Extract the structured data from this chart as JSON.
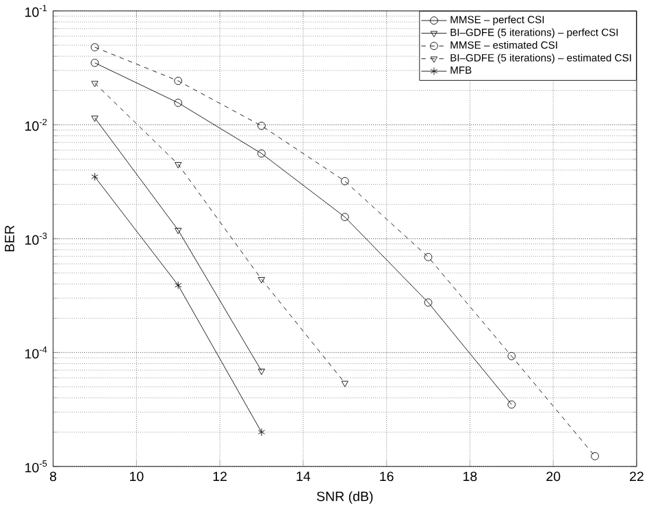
{
  "chart_data": {
    "type": "line",
    "xlabel": "SNR (dB)",
    "ylabel": "BER",
    "log": "y",
    "grid": true,
    "legend": "top right",
    "xlim": [
      8,
      22
    ],
    "xticks": [
      8,
      10,
      12,
      14,
      16,
      18,
      20,
      22
    ],
    "ylim": [
      1e-05,
      0.1
    ],
    "yticks": [
      {
        "value": 1e-05,
        "label": "10$^{-5}$"
      },
      {
        "value": 0.0001,
        "label": "10$^{-4}$"
      },
      {
        "value": 0.001,
        "label": "10$^{-3}$"
      },
      {
        "value": 0.01,
        "label": "10$^{-2}$"
      },
      {
        "value": 0.1,
        "label": "10$^{-1}$"
      }
    ],
    "series": [
      {
        "name": "MMSE – perfect CSI",
        "color": "#000000",
        "marker": "circle",
        "line_style": "solid",
        "x": [
          9,
          11,
          13,
          15,
          17,
          19
        ],
        "values": [
          0.035,
          0.0156,
          0.0056,
          0.00155,
          0.000275,
          3.5e-05
        ]
      },
      {
        "name": "BI–GDFE (5 iterations) – perfect CSI",
        "color": "#000000",
        "marker": "triangle",
        "line_style": "solid",
        "x": [
          9,
          11,
          13
        ],
        "values": [
          0.0115,
          0.00119,
          6.9e-05
        ]
      },
      {
        "name": "MMSE – estimated CSI",
        "color": "#000000",
        "marker": "circle",
        "line_style": "dashed",
        "x": [
          9,
          11,
          13,
          15,
          17,
          19,
          21
        ],
        "values": [
          0.048,
          0.0243,
          0.0098,
          0.0032,
          0.00069,
          9.3e-05,
          1.23e-05
        ]
      },
      {
        "name": "BI–GDFE (5 iterations) – estimated CSI",
        "color": "#000000",
        "marker": "triangle",
        "line_style": "dashed",
        "x": [
          9,
          11,
          13,
          15
        ],
        "values": [
          0.0232,
          0.0045,
          0.00044,
          5.4e-05
        ]
      },
      {
        "name": "MFB",
        "color": "#000000",
        "marker": "cross",
        "line_style": "solid",
        "x": [
          9,
          11,
          13
        ],
        "values": [
          0.0035,
          0.00039,
          2e-05
        ]
      }
    ]
  }
}
